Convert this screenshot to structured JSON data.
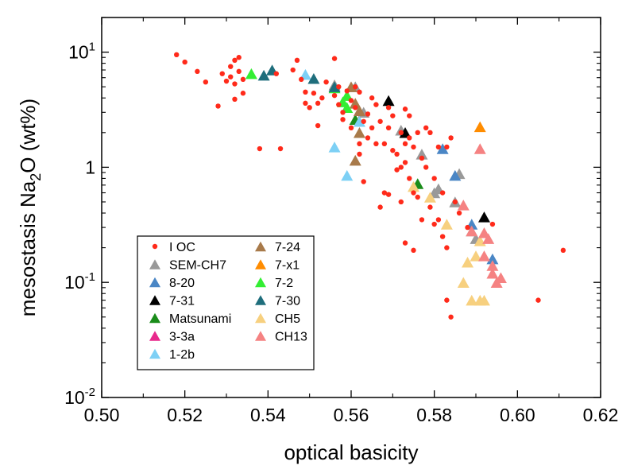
{
  "chart_data": {
    "type": "scatter",
    "xlabel": "optical basicity",
    "ylabel": {
      "prefix": "mesostasis Na",
      "sub": "2",
      "suffix": "O (wt%)"
    },
    "xlim": [
      0.5,
      0.62
    ],
    "ylim": [
      0.01,
      20
    ],
    "yscale": "log",
    "x_ticks": [
      "0.50",
      "0.52",
      "0.54",
      "0.56",
      "0.58",
      "0.60",
      "0.62"
    ],
    "y_ticks": [
      {
        "value": 0.01,
        "base": "10",
        "exp": "-2"
      },
      {
        "value": 0.1,
        "base": "10",
        "exp": "-1"
      },
      {
        "value": 1,
        "base": "1",
        "exp": ""
      },
      {
        "value": 10,
        "base": "10",
        "exp": "1"
      }
    ],
    "grid": false,
    "legend_position": "bottom-left",
    "series": [
      {
        "name": "I OC",
        "marker": "circle",
        "color": "#ff2a1a",
        "points": [
          [
            0.518,
            9.5
          ],
          [
            0.52,
            8.2
          ],
          [
            0.523,
            6.8
          ],
          [
            0.525,
            5.5
          ],
          [
            0.528,
            3.4
          ],
          [
            0.529,
            6.5
          ],
          [
            0.53,
            5.6
          ],
          [
            0.531,
            7.5
          ],
          [
            0.531,
            6.1
          ],
          [
            0.532,
            5.3
          ],
          [
            0.532,
            8.5
          ],
          [
            0.533,
            9.0
          ],
          [
            0.533,
            6.8
          ],
          [
            0.534,
            4.4
          ],
          [
            0.534,
            5.8
          ],
          [
            0.532,
            3.9
          ],
          [
            0.538,
            1.45
          ],
          [
            0.543,
            1.45
          ],
          [
            0.542,
            6.5
          ],
          [
            0.546,
            7.0
          ],
          [
            0.547,
            8.5
          ],
          [
            0.548,
            5.8
          ],
          [
            0.549,
            4.5
          ],
          [
            0.549,
            3.6
          ],
          [
            0.55,
            3.3
          ],
          [
            0.551,
            4.4
          ],
          [
            0.552,
            3.6
          ],
          [
            0.552,
            2.3
          ],
          [
            0.553,
            4.0
          ],
          [
            0.554,
            5.5
          ],
          [
            0.556,
            8.8
          ],
          [
            0.556,
            4.2
          ],
          [
            0.557,
            5.0
          ],
          [
            0.557,
            3.5
          ],
          [
            0.558,
            2.6
          ],
          [
            0.558,
            3.0
          ],
          [
            0.559,
            4.6
          ],
          [
            0.56,
            3.8
          ],
          [
            0.56,
            2.2
          ],
          [
            0.561,
            5.0
          ],
          [
            0.561,
            3.3
          ],
          [
            0.562,
            4.5
          ],
          [
            0.562,
            1.6
          ],
          [
            0.562,
            1.3
          ],
          [
            0.563,
            2.5
          ],
          [
            0.563,
            0.75
          ],
          [
            0.564,
            2.9
          ],
          [
            0.564,
            1.8
          ],
          [
            0.565,
            4.0
          ],
          [
            0.565,
            2.2
          ],
          [
            0.566,
            3.5
          ],
          [
            0.566,
            1.6
          ],
          [
            0.567,
            2.5
          ],
          [
            0.567,
            0.45
          ],
          [
            0.568,
            1.6
          ],
          [
            0.568,
            0.6
          ],
          [
            0.569,
            3.3
          ],
          [
            0.569,
            2.2
          ],
          [
            0.569,
            0.58
          ],
          [
            0.57,
            2.8
          ],
          [
            0.57,
            1.4
          ],
          [
            0.571,
            1.3
          ],
          [
            0.571,
            0.95
          ],
          [
            0.572,
            2.0
          ],
          [
            0.572,
            1.0
          ],
          [
            0.572,
            0.5
          ],
          [
            0.573,
            3.2
          ],
          [
            0.573,
            1.6
          ],
          [
            0.573,
            1.1
          ],
          [
            0.574,
            2.8
          ],
          [
            0.574,
            1.8
          ],
          [
            0.574,
            0.8
          ],
          [
            0.575,
            1.5
          ],
          [
            0.575,
            0.6
          ],
          [
            0.576,
            2.0
          ],
          [
            0.576,
            0.55
          ],
          [
            0.577,
            1.2
          ],
          [
            0.577,
            0.35
          ],
          [
            0.578,
            2.2
          ],
          [
            0.578,
            1.0
          ],
          [
            0.579,
            2.0
          ],
          [
            0.579,
            0.45
          ],
          [
            0.58,
            0.8
          ],
          [
            0.58,
            0.32
          ],
          [
            0.581,
            1.5
          ],
          [
            0.581,
            0.35
          ],
          [
            0.582,
            0.6
          ],
          [
            0.582,
            0.25
          ],
          [
            0.573,
            0.22
          ],
          [
            0.575,
            0.19
          ],
          [
            0.583,
            1.5
          ],
          [
            0.583,
            0.07
          ],
          [
            0.584,
            1.8
          ],
          [
            0.584,
            0.05
          ],
          [
            0.583,
            0.2
          ],
          [
            0.585,
            0.5
          ],
          [
            0.586,
            0.4
          ],
          [
            0.588,
            0.3
          ],
          [
            0.594,
            0.32
          ],
          [
            0.605,
            0.07
          ],
          [
            0.611,
            0.19
          ]
        ]
      },
      {
        "name": "SEM-CH7",
        "marker": "triangle",
        "color": "#999999",
        "points": [
          [
            0.556,
            5.2
          ],
          [
            0.561,
            5.0
          ],
          [
            0.563,
            3.0
          ],
          [
            0.572,
            2.1
          ],
          [
            0.577,
            1.3
          ],
          [
            0.58,
            0.6
          ],
          [
            0.581,
            0.65
          ],
          [
            0.585,
            0.5
          ],
          [
            0.586,
            0.88
          ],
          [
            0.589,
            0.28
          ],
          [
            0.59,
            0.24
          ]
        ]
      },
      {
        "name": "8-20",
        "marker": "triangle",
        "color": "#4a86c5",
        "points": [
          [
            0.582,
            1.45
          ],
          [
            0.585,
            0.85
          ],
          [
            0.589,
            0.32
          ],
          [
            0.594,
            0.16
          ]
        ]
      },
      {
        "name": "7-31",
        "marker": "triangle",
        "color": "#000000",
        "points": [
          [
            0.569,
            3.8
          ],
          [
            0.573,
            2.0
          ],
          [
            0.592,
            0.37
          ]
        ]
      },
      {
        "name": "Matsunami",
        "marker": "triangle",
        "color": "#1a8c1a",
        "points": [
          [
            0.561,
            2.6
          ],
          [
            0.576,
            0.72
          ]
        ]
      },
      {
        "name": "3-3a",
        "marker": "triangle",
        "color": "#e8298c",
        "points": []
      },
      {
        "name": "1-2b",
        "marker": "triangle",
        "color": "#7dd0f5",
        "points": [
          [
            0.549,
            6.4
          ],
          [
            0.556,
            1.5
          ],
          [
            0.559,
            0.85
          ],
          [
            0.562,
            2.5
          ]
        ]
      },
      {
        "name": "7-24",
        "marker": "triangle",
        "color": "#a87a4a",
        "points": [
          [
            0.56,
            5.0
          ],
          [
            0.561,
            3.6
          ],
          [
            0.562,
            3.1
          ],
          [
            0.562,
            2.0
          ],
          [
            0.561,
            1.15
          ]
        ]
      },
      {
        "name": "7-x1",
        "marker": "triangle",
        "color": "#ff8c00",
        "points": [
          [
            0.591,
            2.25
          ]
        ]
      },
      {
        "name": "7-2",
        "marker": "triangle",
        "color": "#33ee33",
        "points": [
          [
            0.536,
            6.5
          ],
          [
            0.556,
            4.9
          ],
          [
            0.558,
            3.7
          ],
          [
            0.559,
            3.3
          ],
          [
            0.559,
            4.2
          ]
        ]
      },
      {
        "name": "7-30",
        "marker": "triangle",
        "color": "#1f6e7c",
        "points": [
          [
            0.539,
            6.3
          ],
          [
            0.541,
            7.0
          ],
          [
            0.551,
            5.9
          ],
          [
            0.556,
            5.0
          ]
        ]
      },
      {
        "name": "CH5",
        "marker": "triangle",
        "color": "#f7d07f",
        "points": [
          [
            0.575,
            0.68
          ],
          [
            0.579,
            0.55
          ],
          [
            0.583,
            0.32
          ],
          [
            0.587,
            0.1
          ],
          [
            0.588,
            0.15
          ],
          [
            0.589,
            0.07
          ],
          [
            0.59,
            0.17
          ],
          [
            0.591,
            0.23
          ],
          [
            0.591,
            0.07
          ],
          [
            0.592,
            0.07
          ]
        ]
      },
      {
        "name": "CH13",
        "marker": "triangle",
        "color": "#f58282",
        "points": [
          [
            0.587,
            0.47
          ],
          [
            0.589,
            0.28
          ],
          [
            0.591,
            1.45
          ],
          [
            0.592,
            0.27
          ],
          [
            0.592,
            0.17
          ],
          [
            0.593,
            0.24
          ],
          [
            0.594,
            0.14
          ],
          [
            0.594,
            0.12
          ],
          [
            0.595,
            0.1
          ],
          [
            0.596,
            0.11
          ]
        ]
      }
    ]
  }
}
